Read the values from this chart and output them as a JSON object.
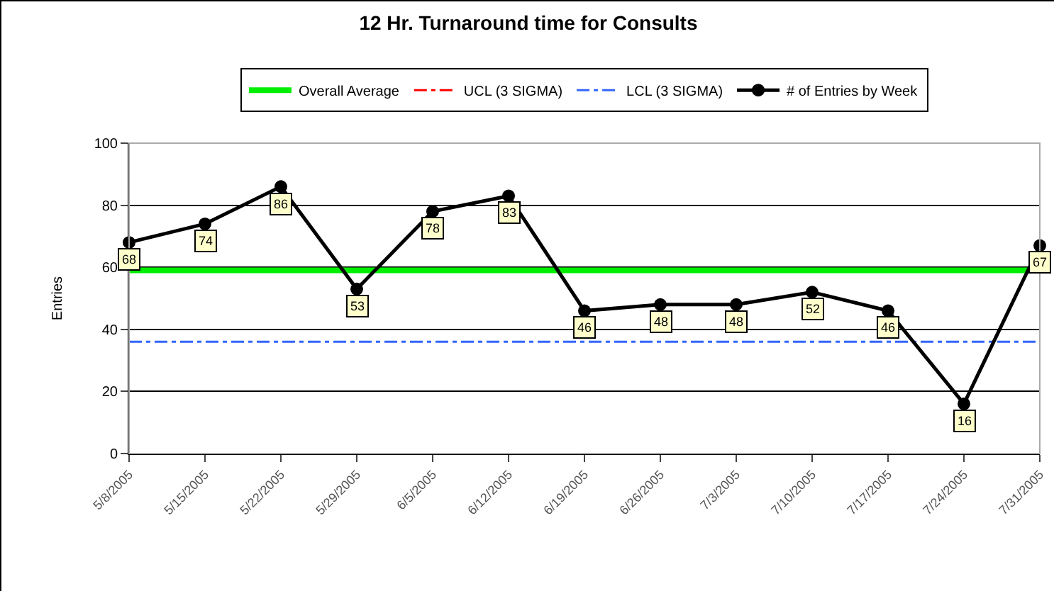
{
  "chart_data": {
    "type": "line",
    "title": "12 Hr. Turnaround time for Consults",
    "ylabel": "Entries",
    "categories": [
      "5/8/2005",
      "5/15/2005",
      "5/22/2005",
      "5/29/2005",
      "6/5/2005",
      "6/12/2005",
      "6/19/2005",
      "6/26/2005",
      "7/3/2005",
      "7/10/2005",
      "7/17/2005",
      "7/24/2005",
      "7/31/2005"
    ],
    "series": [
      {
        "name": "Overall Average",
        "color": "#00ee00",
        "line_style": "solid",
        "marker": "none",
        "values": [
          59,
          59,
          59,
          59,
          59,
          59,
          59,
          59,
          59,
          59,
          59,
          59,
          59
        ]
      },
      {
        "name": "UCL (3 SIGMA)",
        "color": "#ff0000",
        "line_style": "dashed",
        "marker": "none",
        "values": [
          null,
          null,
          null,
          null,
          null,
          null,
          null,
          null,
          null,
          null,
          null,
          null,
          null
        ]
      },
      {
        "name": "LCL (3 SIGMA)",
        "color": "#3366ff",
        "line_style": "dashed",
        "marker": "none",
        "values": [
          36,
          36,
          36,
          36,
          36,
          36,
          36,
          36,
          36,
          36,
          36,
          36,
          36
        ]
      },
      {
        "name": "# of Entries by Week",
        "color": "#000000",
        "line_style": "solid",
        "marker": "circle",
        "data_labels": true,
        "values": [
          68,
          74,
          86,
          53,
          78,
          83,
          46,
          48,
          48,
          52,
          46,
          16,
          67
        ]
      }
    ],
    "ylim": [
      0,
      100
    ],
    "yticks": [
      0,
      20,
      40,
      60,
      80,
      100
    ],
    "grid": "y",
    "legend": "top"
  }
}
